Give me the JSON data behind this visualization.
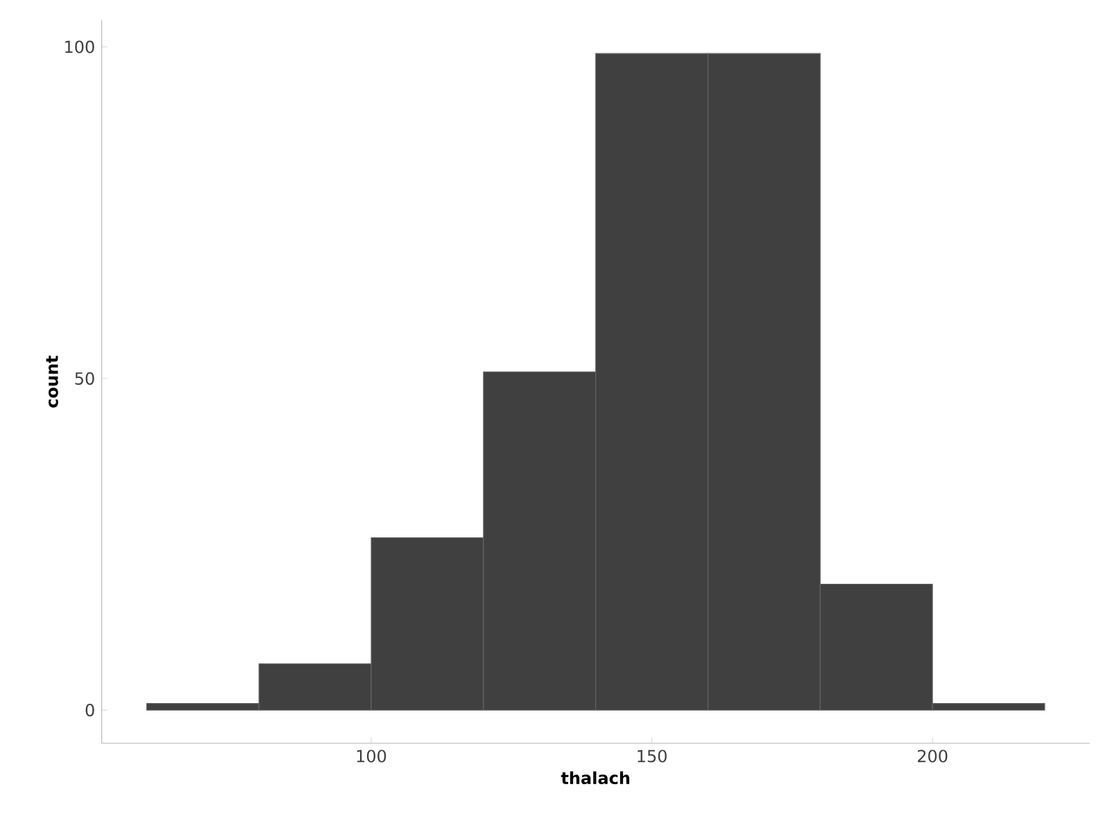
{
  "chart_data": {
    "type": "histogram",
    "xlabel": "thalach",
    "ylabel": "count",
    "bins": [
      60,
      80,
      100,
      120,
      140,
      160,
      180,
      200,
      220
    ],
    "values": [
      1,
      7,
      26,
      51,
      99,
      99,
      19,
      1
    ],
    "color": "#404040",
    "xlim": [
      52,
      228
    ],
    "ylim": [
      -5,
      104
    ],
    "xticks": [
      100,
      150,
      200
    ],
    "yticks": [
      0,
      50,
      100
    ]
  }
}
